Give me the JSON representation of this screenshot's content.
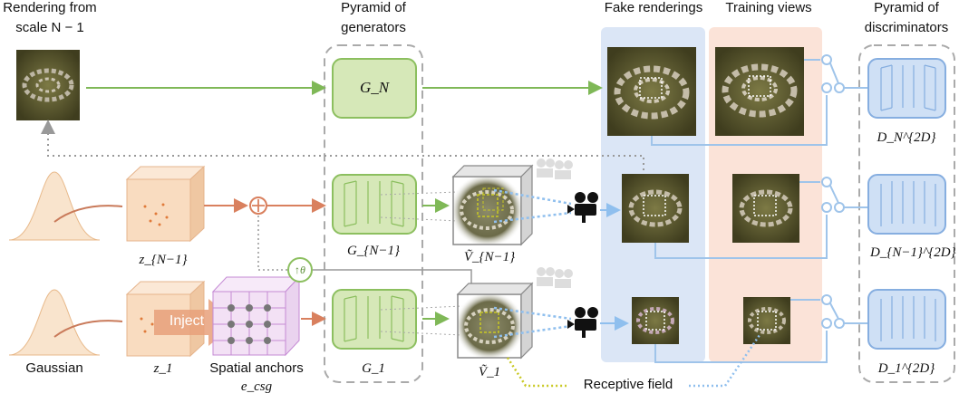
{
  "headers": {
    "rendering_from_l1": "Rendering from",
    "rendering_from_l2": "scale N − 1",
    "pyramid_generators_l1": "Pyramid of",
    "pyramid_generators_l2": "generators",
    "fake_renderings": "Fake renderings",
    "training_views": "Training views",
    "pyramid_discriminators_l1": "Pyramid of",
    "pyramid_discriminators_l2": "discriminators"
  },
  "generators": {
    "g_n": "G_N",
    "g_n_minus_1": "G_{N−1}",
    "g_1": "G_1"
  },
  "latents": {
    "z_n_minus_1": "z_{N−1}",
    "z_1": "z_1"
  },
  "volumes": {
    "v_n_minus_1": "Ṽ_{N−1}",
    "v_1": "Ṽ_1"
  },
  "discriminators": {
    "d_n": "D_N^{2D}",
    "d_n_minus_1": "D_{N−1}^{2D}",
    "d_1": "D_1^{2D}"
  },
  "bottom_labels": {
    "gaussian": "Gaussian",
    "spatial_anchors": "Spatial anchors",
    "e_csg": "e_csg",
    "receptive_field": "Receptive field"
  },
  "operators": {
    "inject": "Inject",
    "upsample": "↑θ",
    "add": "⊕"
  },
  "colors": {
    "generator_fill": "#d6e8b8",
    "generator_stroke": "#8cbf5f",
    "discriminator_fill": "#cfe0f5",
    "discriminator_stroke": "#86aee0",
    "fake_band": "#dbe6f6",
    "training_band": "#fbe3d8",
    "latent_fill": "#f9dcc0",
    "arrow_green": "#7fb857",
    "arrow_red": "#d9805e",
    "arrow_blue": "#8fbfee",
    "receptive": "#c9c923"
  }
}
